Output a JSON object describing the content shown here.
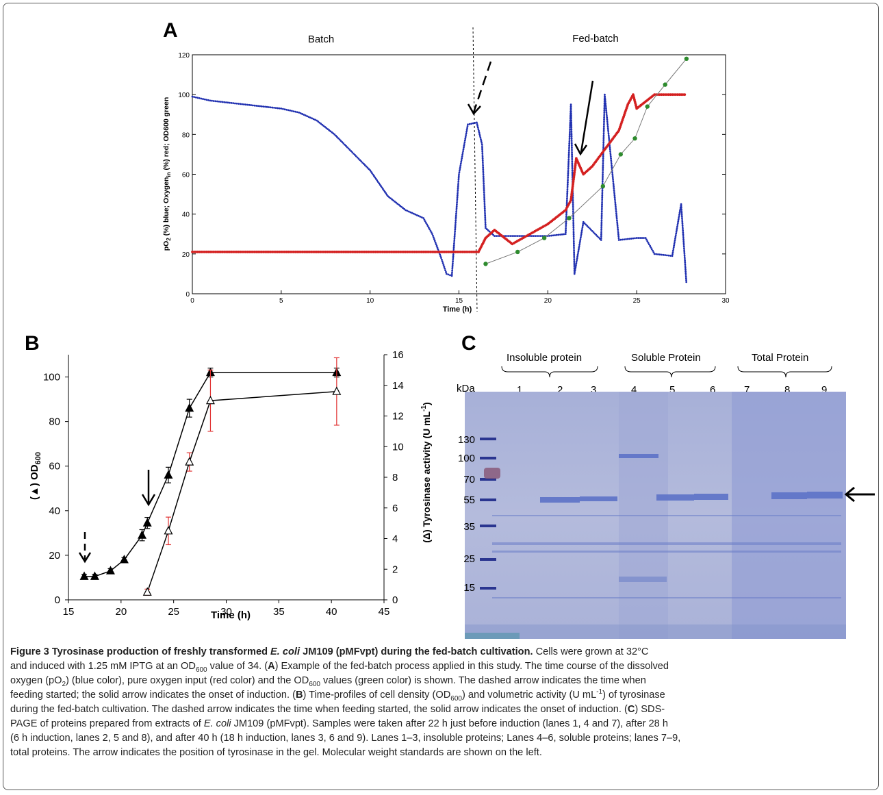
{
  "figure": {
    "panel_a_letter": "A",
    "panel_b_letter": "B",
    "panel_c_letter": "C"
  },
  "panel_a": {
    "label_batch": "Batch",
    "label_fedbatch": "Fed-batch",
    "xlabel": "Time (h)",
    "ylabel_parts": [
      "pO",
      "2",
      " (%) blue; Oxygen",
      "in",
      " (%) red; OD600 green"
    ],
    "colors": {
      "blue": "#1f2fb0",
      "red": "#d42020",
      "green": "#2e8b2e"
    },
    "x_ticks": [
      "0",
      "5",
      "10",
      "15",
      "20",
      "25",
      "30"
    ],
    "y_ticks": [
      "0",
      "20",
      "40",
      "60",
      "80",
      "100",
      "120"
    ]
  },
  "panel_b": {
    "ylabel_left_parts": [
      "(▲) OD",
      "600"
    ],
    "ylabel_right": "(Δ) Tyrosinase activity (U mL",
    "ylabel_right_sup": "-1",
    "ylabel_right_end": ")",
    "xlabel": "Time (h)",
    "x_ticks": [
      "15",
      "20",
      "25",
      "30",
      "35",
      "40",
      "45"
    ],
    "y_left_ticks": [
      "0",
      "20",
      "40",
      "60",
      "80",
      "100"
    ],
    "y_right_ticks": [
      "0",
      "2",
      "4",
      "6",
      "8",
      "10",
      "12",
      "14",
      "16"
    ]
  },
  "panel_c": {
    "group_labels": [
      "Insoluble protein",
      "Soluble Protein",
      "Total Protein"
    ],
    "kda_label": "kDa",
    "lanes": [
      "1",
      "2",
      "3",
      "4",
      "5",
      "6",
      "7",
      "8",
      "9"
    ],
    "markers": [
      "130",
      "100",
      "70",
      "55",
      "35",
      "25",
      "15"
    ]
  },
  "chart_data": [
    {
      "type": "scatter",
      "panel": "A",
      "xlabel": "Time (h)",
      "ylabel": "pO2 (%) blue; Oxygen in (%) red; OD600 green",
      "xlim": [
        0,
        30
      ],
      "ylim": [
        0,
        120
      ],
      "series": [
        {
          "x": [
            0,
            1,
            2,
            3,
            4,
            5,
            6,
            7,
            8,
            9,
            10,
            11,
            12,
            13,
            13.5,
            14,
            14.3,
            14.6,
            15,
            15.5,
            16,
            16.3,
            16.5,
            17,
            18,
            19,
            20,
            21,
            21.3,
            21.5,
            22,
            23,
            23.2,
            24,
            25,
            25.5,
            26,
            27,
            27.5,
            27.8
          ],
          "y": [
            99,
            97,
            96,
            95,
            94,
            93,
            91,
            87,
            80,
            71,
            62,
            49,
            42,
            38,
            30,
            18,
            10,
            9,
            60,
            85,
            86,
            75,
            33,
            29,
            29,
            29,
            29,
            30,
            95,
            10,
            36,
            27,
            100,
            27,
            28,
            28,
            20,
            19,
            45,
            5
          ]
        },
        {
          "x": [
            0,
            5,
            10,
            15,
            16.1,
            16.5,
            17,
            18,
            19,
            20,
            21,
            21.3,
            21.6,
            22,
            22.5,
            23,
            24,
            24.5,
            24.8,
            25,
            26,
            27,
            27.6,
            27.8
          ],
          "y": [
            21,
            21,
            21,
            21,
            21,
            28,
            32,
            25,
            30,
            35,
            42,
            47,
            68,
            60,
            64,
            70,
            82,
            95,
            100,
            93,
            100,
            100,
            100,
            100
          ]
        },
        {
          "x": [
            16.5,
            18.3,
            19.8,
            21.2,
            23.1,
            24.1,
            24.9,
            25.6,
            26.6,
            27.8
          ],
          "y": [
            15,
            21,
            28,
            38,
            54,
            70,
            78,
            94,
            105,
            118
          ]
        }
      ]
    },
    {
      "type": "line",
      "panel": "B",
      "xlabel": "Time (h)",
      "ylabel": "OD600",
      "y2label": "Tyrosinase activity (U mL-1)",
      "xlim": [
        15,
        45
      ],
      "ylim": [
        0,
        110
      ],
      "y2lim": [
        0,
        16
      ],
      "series": [
        {
          "axis": "left",
          "x": [
            16.5,
            17.5,
            19,
            20.3,
            22,
            22.5,
            24.5,
            26.5,
            28.5,
            40.5
          ],
          "y": [
            10.5,
            10.5,
            13,
            18,
            29,
            34.5,
            56,
            86,
            102,
            102
          ],
          "error": [
            1,
            1,
            1,
            1,
            2.5,
            2.5,
            3.5,
            4,
            2,
            2
          ]
        },
        {
          "axis": "right",
          "x": [
            22.5,
            24.5,
            26.5,
            28.5,
            40.5
          ],
          "y": [
            0.5,
            4.5,
            9,
            13,
            13.6
          ],
          "error": [
            0.2,
            0.9,
            0.6,
            2,
            2.2
          ]
        }
      ]
    }
  ],
  "caption": {
    "title": "Figure 3 Tyrosinase production of freshly transformed ",
    "title_italic": "E. coli",
    "title_end": " JM109 (pMFvpt) during the fed-batch cultivation.",
    "l1": " Cells were grown at 32°C",
    "l2a": "and induced with 1.25 mM IPTG at an OD",
    "l2sub": "600",
    "l2b": " value of 34. (",
    "A": "A",
    "l2c": ") Example of the fed-batch process applied in this study. The time course of the dissolved",
    "l3a": "oxygen (pO",
    "l3sub": "2",
    "l3b": ") (blue color), pure oxygen input (red color) and the OD",
    "l3sub2": "600",
    "l3c": " values (green color) is shown. The dashed arrow indicates the time when",
    "l4": "feeding started; the solid arrow indicates the onset of induction. (",
    "B": "B",
    "l4b": ") Time-profiles of cell density (OD",
    "l4sub": "600",
    "l4c": ") and volumetric activity (U mL",
    "l4sup": "-1",
    "l4d": ") of tyrosinase",
    "l5": "during the fed-batch cultivation. The dashed arrow indicates the time when feeding started, the solid arrow indicates the onset of induction. (",
    "C": "C",
    "l5b": ") SDS-",
    "l6a": "PAGE of proteins prepared from extracts of ",
    "l6i": "E. coli",
    "l6b": " JM109 (pMFvpt). Samples were taken after 22 h just before induction (lanes 1, 4 and 7), after 28 h",
    "l7": "(6 h induction, lanes 2, 5 and 8), and after 40 h (18 h induction, lanes 3, 6 and 9). Lanes 1–3, insoluble proteins; Lanes 4–6, soluble proteins; lanes 7–9,",
    "l8": "total proteins. The arrow indicates the position of tyrosinase in the gel. Molecular weight standards are shown on the left."
  }
}
